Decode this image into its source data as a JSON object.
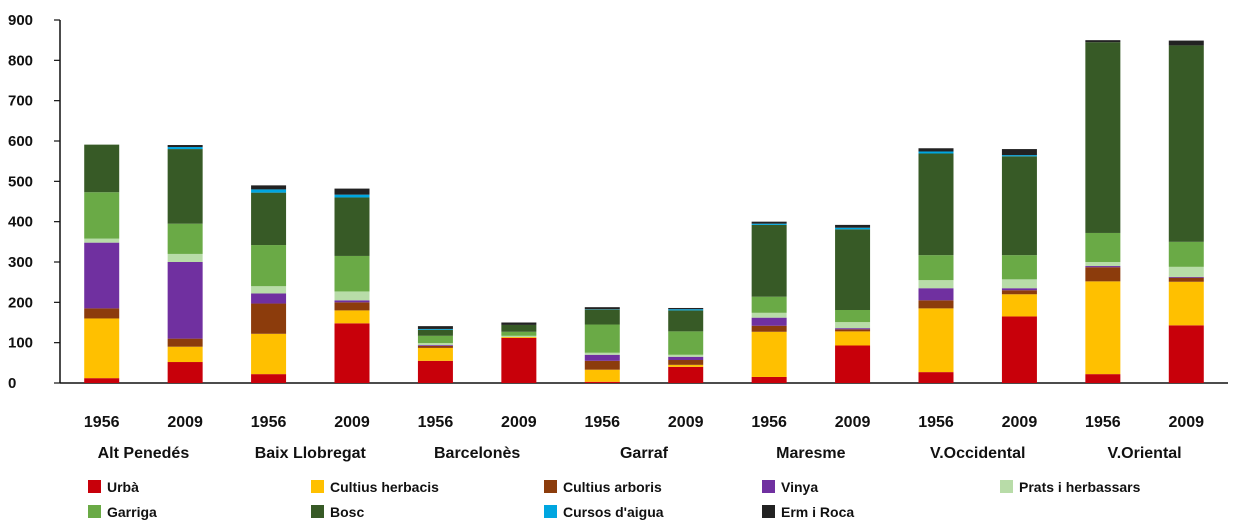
{
  "chart_data": {
    "type": "bar",
    "stacked": true,
    "ylim": [
      0,
      900
    ],
    "yticks": [
      0,
      100,
      200,
      300,
      400,
      500,
      600,
      700,
      800,
      900
    ],
    "grid": false,
    "legend_position": "bottom",
    "groups": [
      "Alt Penedés",
      "Baix Llobregat",
      "Barcelonès",
      "Garraf",
      "Maresme",
      "V.Occidental",
      "V.Oriental"
    ],
    "categories": [
      "1956",
      "2009",
      "1956",
      "2009",
      "1956",
      "2009",
      "1956",
      "2009",
      "1956",
      "2009",
      "1956",
      "2009",
      "1956",
      "2009"
    ],
    "series": [
      {
        "name": "Urbà",
        "color": "#c8000a",
        "values": [
          12,
          52,
          22,
          148,
          55,
          112,
          3,
          40,
          15,
          93,
          27,
          165,
          22,
          143
        ]
      },
      {
        "name": "Cultius herbacis",
        "color": "#ffc000",
        "values": [
          148,
          38,
          100,
          32,
          32,
          2,
          30,
          5,
          112,
          35,
          158,
          55,
          230,
          108
        ]
      },
      {
        "name": "Cultius arboris",
        "color": "#8c3c0c",
        "values": [
          25,
          20,
          75,
          20,
          5,
          0,
          22,
          12,
          15,
          5,
          20,
          10,
          35,
          10
        ]
      },
      {
        "name": "Vinya",
        "color": "#7030a0",
        "values": [
          163,
          190,
          25,
          5,
          2,
          0,
          15,
          8,
          20,
          3,
          30,
          5,
          3,
          2
        ]
      },
      {
        "name": "Prats i herbassars",
        "color": "#b8dca8",
        "values": [
          10,
          20,
          18,
          22,
          5,
          3,
          5,
          5,
          12,
          15,
          20,
          22,
          10,
          25
        ]
      },
      {
        "name": "Garriga",
        "color": "#6aaa46",
        "values": [
          115,
          75,
          102,
          88,
          18,
          10,
          70,
          58,
          40,
          30,
          62,
          60,
          72,
          62
        ]
      },
      {
        "name": "Bosc",
        "color": "#375a26",
        "values": [
          118,
          185,
          130,
          145,
          15,
          17,
          37,
          52,
          178,
          200,
          252,
          245,
          473,
          487
        ]
      },
      {
        "name": "Cursos d'aigua",
        "color": "#00a6e0",
        "values": [
          0,
          5,
          8,
          7,
          2,
          0,
          1,
          3,
          3,
          4,
          5,
          3,
          0,
          0
        ]
      },
      {
        "name": "Erm i Roca",
        "color": "#222222",
        "values": [
          0,
          5,
          10,
          15,
          7,
          6,
          5,
          3,
          5,
          7,
          8,
          15,
          5,
          12
        ]
      }
    ]
  }
}
